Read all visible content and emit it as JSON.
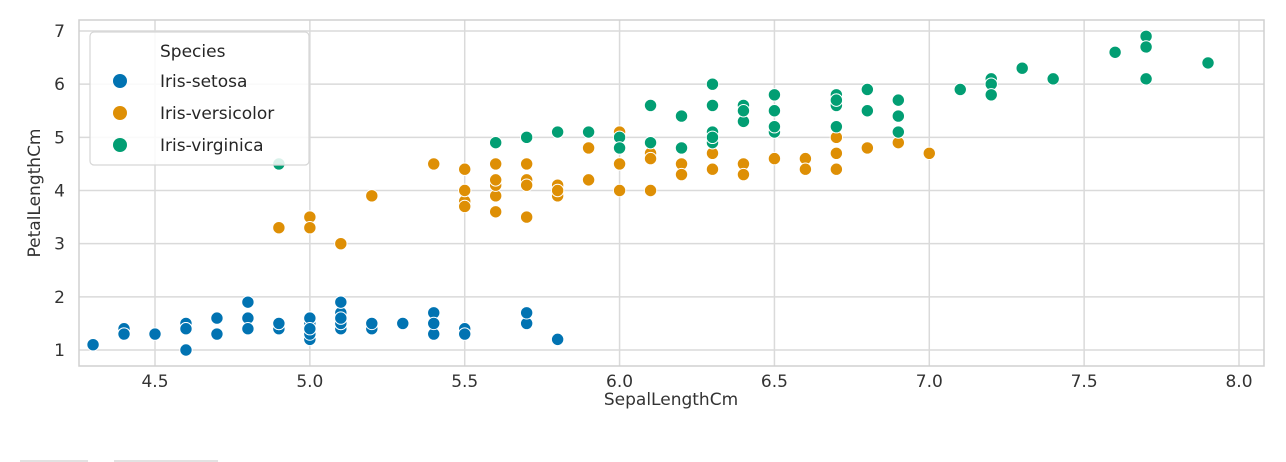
{
  "chart_data": {
    "type": "scatter",
    "title": "",
    "xlabel": "SepalLengthCm",
    "ylabel": "PetalLengthCm",
    "xlim": [
      4.18,
      8.12
    ],
    "ylim": [
      0.7,
      7.2
    ],
    "xticks": [
      "4.5",
      "5.0",
      "5.5",
      "6.0",
      "6.5",
      "7.0",
      "7.5",
      "8.0"
    ],
    "yticks": [
      "1",
      "2",
      "3",
      "4",
      "5",
      "6",
      "7"
    ],
    "grid": true,
    "legend": {
      "title": "Species",
      "position": "upper left"
    },
    "series": [
      {
        "name": "Iris-setosa",
        "color": "#0173b2",
        "points": [
          [
            5.1,
            1.4
          ],
          [
            4.9,
            1.4
          ],
          [
            4.7,
            1.3
          ],
          [
            4.6,
            1.5
          ],
          [
            5.0,
            1.4
          ],
          [
            5.4,
            1.7
          ],
          [
            4.6,
            1.4
          ],
          [
            5.0,
            1.5
          ],
          [
            4.4,
            1.4
          ],
          [
            4.9,
            1.5
          ],
          [
            5.4,
            1.5
          ],
          [
            4.8,
            1.6
          ],
          [
            4.8,
            1.4
          ],
          [
            4.3,
            1.1
          ],
          [
            5.8,
            1.2
          ],
          [
            5.7,
            1.5
          ],
          [
            5.4,
            1.3
          ],
          [
            5.1,
            1.4
          ],
          [
            5.7,
            1.7
          ],
          [
            5.1,
            1.5
          ],
          [
            5.4,
            1.7
          ],
          [
            5.1,
            1.5
          ],
          [
            4.6,
            1.0
          ],
          [
            5.1,
            1.7
          ],
          [
            4.8,
            1.9
          ],
          [
            5.0,
            1.6
          ],
          [
            5.0,
            1.6
          ],
          [
            5.2,
            1.5
          ],
          [
            5.2,
            1.4
          ],
          [
            4.7,
            1.6
          ],
          [
            4.8,
            1.6
          ],
          [
            5.4,
            1.5
          ],
          [
            5.2,
            1.5
          ],
          [
            5.5,
            1.4
          ],
          [
            4.9,
            1.5
          ],
          [
            5.0,
            1.2
          ],
          [
            5.5,
            1.3
          ],
          [
            4.9,
            1.5
          ],
          [
            4.4,
            1.3
          ],
          [
            5.1,
            1.5
          ],
          [
            5.0,
            1.3
          ],
          [
            4.5,
            1.3
          ],
          [
            4.4,
            1.3
          ],
          [
            5.0,
            1.6
          ],
          [
            5.1,
            1.9
          ],
          [
            4.8,
            1.4
          ],
          [
            5.1,
            1.6
          ],
          [
            4.6,
            1.4
          ],
          [
            5.3,
            1.5
          ],
          [
            5.0,
            1.4
          ]
        ]
      },
      {
        "name": "Iris-versicolor",
        "color": "#de8f05",
        "points": [
          [
            7.0,
            4.7
          ],
          [
            6.4,
            4.5
          ],
          [
            6.9,
            4.9
          ],
          [
            5.5,
            4.0
          ],
          [
            6.5,
            4.6
          ],
          [
            5.7,
            4.5
          ],
          [
            6.3,
            4.7
          ],
          [
            4.9,
            3.3
          ],
          [
            6.6,
            4.6
          ],
          [
            5.2,
            3.9
          ],
          [
            5.0,
            3.5
          ],
          [
            5.9,
            4.2
          ],
          [
            6.0,
            4.0
          ],
          [
            6.1,
            4.7
          ],
          [
            5.6,
            3.6
          ],
          [
            6.7,
            4.4
          ],
          [
            5.6,
            4.5
          ],
          [
            5.8,
            4.1
          ],
          [
            6.2,
            4.5
          ],
          [
            5.6,
            3.9
          ],
          [
            5.9,
            4.8
          ],
          [
            6.1,
            4.0
          ],
          [
            6.3,
            4.9
          ],
          [
            6.1,
            4.7
          ],
          [
            6.4,
            4.3
          ],
          [
            6.6,
            4.4
          ],
          [
            6.8,
            4.8
          ],
          [
            6.7,
            5.0
          ],
          [
            6.0,
            4.5
          ],
          [
            5.7,
            3.5
          ],
          [
            5.5,
            3.8
          ],
          [
            5.5,
            3.7
          ],
          [
            5.8,
            3.9
          ],
          [
            6.0,
            5.1
          ],
          [
            5.4,
            4.5
          ],
          [
            6.0,
            4.5
          ],
          [
            6.7,
            4.7
          ],
          [
            6.3,
            4.4
          ],
          [
            5.6,
            4.1
          ],
          [
            5.5,
            4.0
          ],
          [
            5.5,
            4.4
          ],
          [
            6.1,
            4.6
          ],
          [
            5.8,
            4.0
          ],
          [
            5.0,
            3.3
          ],
          [
            5.6,
            4.2
          ],
          [
            5.7,
            4.2
          ],
          [
            5.7,
            4.2
          ],
          [
            6.2,
            4.3
          ],
          [
            5.1,
            3.0
          ],
          [
            5.7,
            4.1
          ]
        ]
      },
      {
        "name": "Iris-virginica",
        "color": "#029e73",
        "points": [
          [
            6.3,
            6.0
          ],
          [
            5.8,
            5.1
          ],
          [
            7.1,
            5.9
          ],
          [
            6.3,
            5.6
          ],
          [
            6.5,
            5.8
          ],
          [
            7.6,
            6.6
          ],
          [
            4.9,
            4.5
          ],
          [
            7.3,
            6.3
          ],
          [
            6.7,
            5.8
          ],
          [
            7.2,
            6.1
          ],
          [
            6.5,
            5.1
          ],
          [
            6.4,
            5.3
          ],
          [
            6.8,
            5.5
          ],
          [
            5.7,
            5.0
          ],
          [
            5.8,
            5.1
          ],
          [
            6.4,
            5.3
          ],
          [
            6.5,
            5.5
          ],
          [
            7.7,
            6.7
          ],
          [
            7.7,
            6.9
          ],
          [
            6.0,
            5.0
          ],
          [
            6.9,
            5.7
          ],
          [
            5.6,
            4.9
          ],
          [
            7.7,
            6.7
          ],
          [
            6.3,
            4.9
          ],
          [
            6.7,
            5.7
          ],
          [
            7.2,
            6.0
          ],
          [
            6.2,
            4.8
          ],
          [
            6.1,
            4.9
          ],
          [
            6.4,
            5.6
          ],
          [
            7.2,
            5.8
          ],
          [
            7.4,
            6.1
          ],
          [
            7.9,
            6.4
          ],
          [
            6.4,
            5.6
          ],
          [
            6.3,
            5.1
          ],
          [
            6.1,
            5.6
          ],
          [
            7.7,
            6.1
          ],
          [
            6.3,
            5.6
          ],
          [
            6.4,
            5.5
          ],
          [
            6.0,
            4.8
          ],
          [
            6.9,
            5.4
          ],
          [
            6.7,
            5.6
          ],
          [
            6.9,
            5.1
          ],
          [
            5.8,
            5.1
          ],
          [
            6.8,
            5.9
          ],
          [
            6.7,
            5.7
          ],
          [
            6.7,
            5.2
          ],
          [
            6.3,
            5.0
          ],
          [
            6.5,
            5.2
          ],
          [
            6.2,
            5.4
          ],
          [
            5.9,
            5.1
          ]
        ]
      }
    ]
  }
}
